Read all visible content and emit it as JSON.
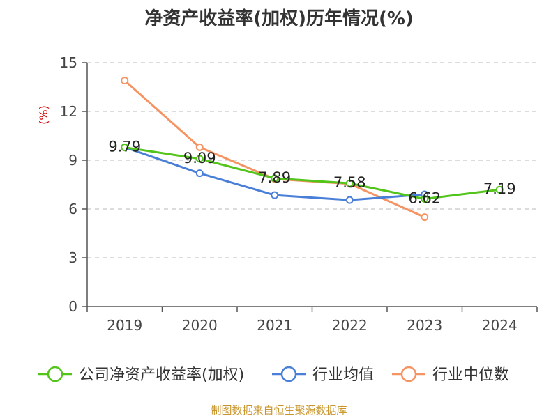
{
  "chart_data": {
    "type": "line",
    "title": "净资产收益率(加权)历年情况(%)",
    "ylabel": "(%)",
    "xlabel": "",
    "categories": [
      "2019",
      "2020",
      "2021",
      "2022",
      "2023",
      "2024"
    ],
    "ylim": [
      0,
      15
    ],
    "yticks": [
      0,
      3,
      6,
      9,
      12,
      15
    ],
    "grid": true,
    "legend_position": "bottom",
    "series": [
      {
        "name": "公司净资产收益率(加权)",
        "color": "#52c41a",
        "values": [
          9.79,
          9.09,
          7.89,
          7.58,
          6.62,
          7.19
        ],
        "labels": [
          "9.79",
          "9.09",
          "7.89",
          "7.58",
          "6.62",
          "7.19"
        ]
      },
      {
        "name": "行业均值",
        "color": "#4a7fd8",
        "values": [
          9.8,
          8.2,
          6.85,
          6.55,
          6.9,
          null
        ]
      },
      {
        "name": "行业中位数",
        "color": "#f59463",
        "values": [
          13.9,
          9.8,
          7.85,
          7.55,
          5.5,
          null
        ]
      }
    ]
  },
  "footer": "制图数据来自恒生聚源数据库"
}
